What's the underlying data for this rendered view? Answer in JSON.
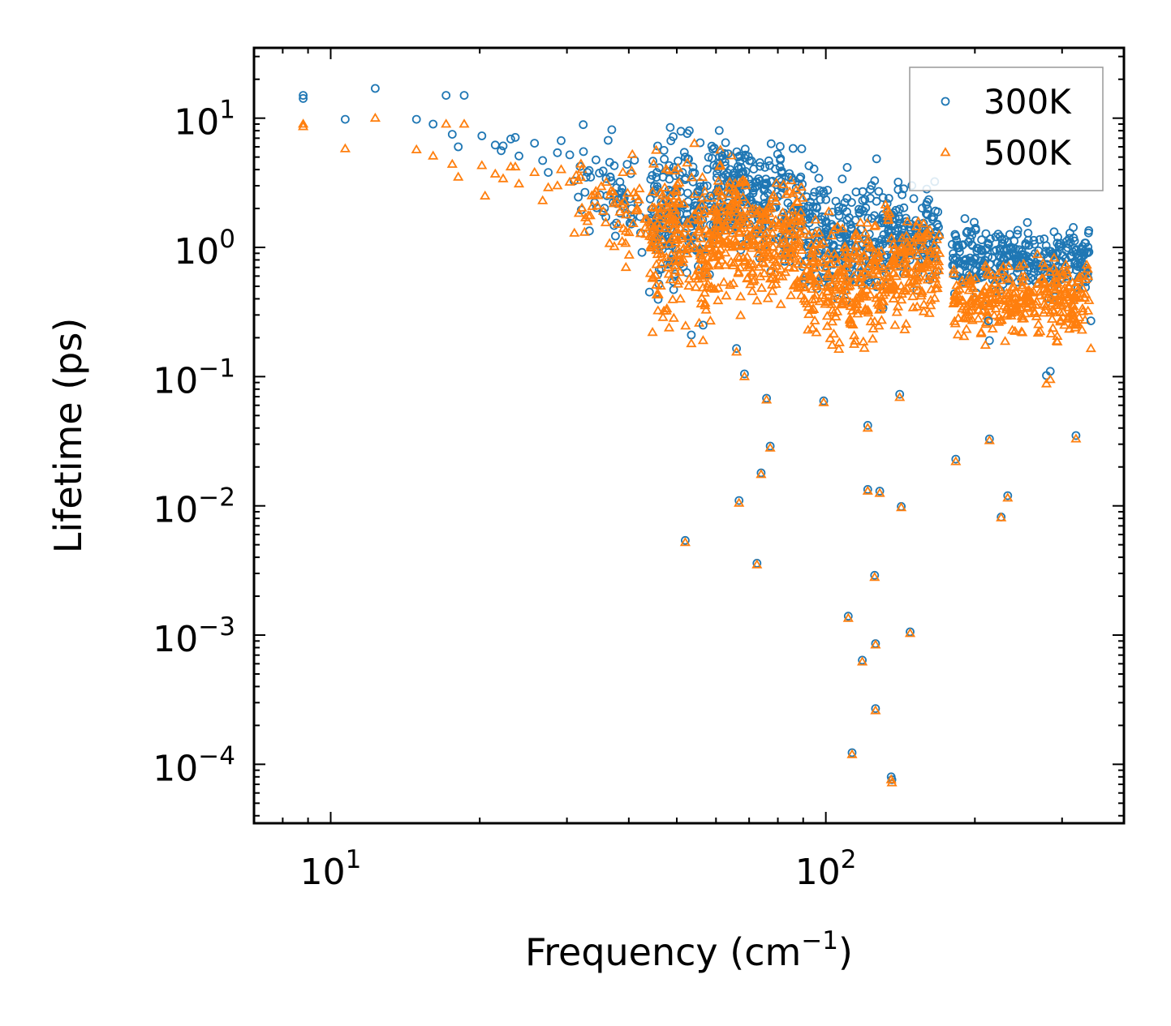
{
  "chart_data": {
    "type": "scatter",
    "title": "",
    "xlabel": "Frequency (cm",
    "xlabel_sup": "−1",
    "xlabel_suffix": ")",
    "ylabel": "Lifetime (ps)",
    "xscale": "log",
    "yscale": "log",
    "xlim": [
      7,
      400
    ],
    "ylim": [
      3.5e-05,
      35
    ],
    "x_ticks": [
      {
        "base": "10",
        "exp": "1",
        "value": 10
      },
      {
        "base": "10",
        "exp": "2",
        "value": 100
      }
    ],
    "y_ticks": [
      {
        "base": "10",
        "exp": "1",
        "value": 10
      },
      {
        "base": "10",
        "exp": "0",
        "value": 1
      },
      {
        "base": "10",
        "exp": "−1",
        "value": 0.1
      },
      {
        "base": "10",
        "exp": "−2",
        "value": 0.01
      },
      {
        "base": "10",
        "exp": "−3",
        "value": 0.001
      },
      {
        "base": "10",
        "exp": "−4",
        "value": 0.0001
      }
    ],
    "legend_position": "top-right",
    "series": [
      {
        "name": "300K",
        "marker": "circle",
        "color": "#1f77b4",
        "points": [
          [
            8.8,
            15.0
          ],
          [
            8.8,
            14.2
          ],
          [
            10.7,
            9.8
          ],
          [
            12.3,
            17.0
          ],
          [
            14.9,
            9.8
          ],
          [
            16.1,
            9.0
          ],
          [
            17.1,
            15.0
          ],
          [
            17.6,
            7.5
          ],
          [
            18.1,
            6.0
          ],
          [
            18.6,
            15.0
          ],
          [
            20.2,
            7.3
          ],
          [
            21.5,
            6.2
          ],
          [
            22.1,
            5.6
          ],
          [
            22.3,
            6.1
          ],
          [
            23.1,
            6.9
          ],
          [
            23.6,
            7.1
          ],
          [
            24.0,
            5.1
          ],
          [
            25.8,
            6.4
          ],
          [
            26.8,
            4.7
          ],
          [
            27.5,
            3.8
          ],
          [
            28.7,
            5.4
          ],
          [
            29.2,
            6.7
          ],
          [
            30.4,
            5.2
          ],
          [
            33.0,
            3.8
          ],
          [
            35.5,
            3.9
          ],
          [
            46.9,
            3.5
          ],
          [
            52.0,
            5.0
          ],
          [
            52.5,
            7.6
          ],
          [
            55.1,
            2.7
          ],
          [
            58.5,
            2.5
          ],
          [
            61.8,
            5.1
          ],
          [
            63.5,
            5.3
          ],
          [
            77.0,
            4.3
          ],
          [
            84.2,
            3.5
          ],
          [
            88.6,
            3.4
          ],
          [
            123.0,
            2.4
          ],
          [
            140.0,
            3.2
          ],
          [
            140.0,
            2.8
          ],
          [
            53.5,
            0.21
          ],
          [
            56.5,
            0.25
          ],
          [
            66.0,
            0.165
          ],
          [
            68.5,
            0.105
          ],
          [
            75.9,
            0.068
          ],
          [
            99.0,
            0.065
          ],
          [
            141.0,
            0.073
          ],
          [
            121.5,
            0.042
          ],
          [
            77.2,
            0.029
          ],
          [
            74.0,
            0.018
          ],
          [
            66.8,
            0.011
          ],
          [
            52.0,
            0.0054
          ],
          [
            72.6,
            0.0036
          ],
          [
            183.0,
            0.023
          ],
          [
            214.0,
            0.033
          ],
          [
            226.0,
            0.0082
          ],
          [
            233.0,
            0.012
          ],
          [
            284.0,
            0.11
          ],
          [
            279.0,
            0.102
          ],
          [
            320.0,
            0.035
          ],
          [
            121.5,
            0.0134
          ],
          [
            128.5,
            0.013
          ],
          [
            142.0,
            0.0099
          ],
          [
            125.5,
            0.0029
          ],
          [
            111.0,
            0.0014
          ],
          [
            126.0,
            0.00086
          ],
          [
            148.0,
            0.00106
          ],
          [
            118.5,
            0.00064
          ],
          [
            126.0,
            0.00027
          ],
          [
            113.0,
            0.000123
          ],
          [
            135.5,
            8e-05
          ],
          [
            136.0,
            7.6e-05
          ],
          [
            214.0,
            0.19
          ],
          [
            213.0,
            0.27
          ],
          [
            343.0,
            0.27
          ]
        ]
      },
      {
        "name": "500K",
        "marker": "triangle",
        "color": "#ff7f0e",
        "points": [
          [
            8.8,
            9.0
          ],
          [
            8.8,
            8.6
          ],
          [
            10.7,
            5.8
          ],
          [
            12.3,
            10.0
          ],
          [
            14.9,
            5.7
          ],
          [
            16.1,
            5.1
          ],
          [
            17.1,
            9.0
          ],
          [
            17.6,
            4.4
          ],
          [
            18.1,
            3.5
          ],
          [
            18.6,
            9.0
          ],
          [
            20.2,
            4.3
          ],
          [
            20.5,
            2.5
          ],
          [
            21.5,
            3.7
          ],
          [
            22.3,
            3.4
          ],
          [
            23.1,
            4.2
          ],
          [
            23.6,
            4.2
          ],
          [
            24.0,
            3.1
          ],
          [
            25.8,
            3.8
          ],
          [
            26.8,
            2.3
          ],
          [
            27.5,
            2.9
          ],
          [
            28.7,
            3.0
          ],
          [
            29.2,
            4.0
          ],
          [
            30.4,
            3.2
          ],
          [
            52.5,
            4.5
          ],
          [
            53.5,
            0.18
          ],
          [
            56.5,
            0.19
          ],
          [
            66.0,
            0.155
          ],
          [
            68.5,
            0.1
          ],
          [
            75.9,
            0.066
          ],
          [
            99.0,
            0.063
          ],
          [
            141.0,
            0.069
          ],
          [
            121.5,
            0.04
          ],
          [
            77.2,
            0.028
          ],
          [
            74.0,
            0.0175
          ],
          [
            66.8,
            0.0105
          ],
          [
            52.0,
            0.0052
          ],
          [
            72.6,
            0.0035
          ],
          [
            183.0,
            0.022
          ],
          [
            214.0,
            0.032
          ],
          [
            226.0,
            0.0081
          ],
          [
            233.0,
            0.0115
          ],
          [
            284.0,
            0.095
          ],
          [
            279.0,
            0.088
          ],
          [
            320.0,
            0.033
          ],
          [
            121.5,
            0.013
          ],
          [
            128.5,
            0.0125
          ],
          [
            142.0,
            0.0097
          ],
          [
            125.5,
            0.0028
          ],
          [
            111.0,
            0.00135
          ],
          [
            126.0,
            0.00084
          ],
          [
            148.0,
            0.00103
          ],
          [
            118.5,
            0.00062
          ],
          [
            126.0,
            0.00026
          ],
          [
            113.0,
            0.000119
          ],
          [
            135.5,
            7.6e-05
          ],
          [
            136.0,
            7.2e-05
          ],
          [
            103.0,
            0.175
          ],
          [
            210.0,
            0.175
          ],
          [
            343.0,
            0.165
          ],
          [
            206.0,
            0.22
          ]
        ]
      }
    ],
    "dense_clusters": [
      {
        "series": "300K",
        "x_range": [
          31,
          44
        ],
        "y_center": 2.6,
        "y_spread": 0.18,
        "count": 60
      },
      {
        "series": "300K",
        "x_range": [
          44,
          60
        ],
        "y_center": 1.7,
        "y_spread": 0.28,
        "count": 200
      },
      {
        "series": "300K",
        "x_range": [
          60,
          70
        ],
        "y_center": 2.7,
        "y_spread": 0.2,
        "count": 120
      },
      {
        "series": "300K",
        "x_range": [
          70,
          90
        ],
        "y_center": 2.1,
        "y_spread": 0.22,
        "count": 150
      },
      {
        "series": "300K",
        "x_range": [
          90,
          130
        ],
        "y_center": 1.2,
        "y_spread": 0.22,
        "count": 220
      },
      {
        "series": "300K",
        "x_range": [
          130,
          170
        ],
        "y_center": 1.2,
        "y_spread": 0.18,
        "count": 160
      },
      {
        "series": "300K",
        "x_range": [
          180,
          340
        ],
        "y_center": 0.8,
        "y_spread": 0.12,
        "count": 320
      },
      {
        "series": "500K",
        "x_range": [
          31,
          44
        ],
        "y_center": 1.9,
        "y_spread": 0.18,
        "count": 60
      },
      {
        "series": "500K",
        "x_range": [
          44,
          60
        ],
        "y_center": 1.0,
        "y_spread": 0.28,
        "count": 220
      },
      {
        "series": "500K",
        "x_range": [
          60,
          70
        ],
        "y_center": 1.3,
        "y_spread": 0.25,
        "count": 130
      },
      {
        "series": "500K",
        "x_range": [
          70,
          90
        ],
        "y_center": 1.1,
        "y_spread": 0.22,
        "count": 170
      },
      {
        "series": "500K",
        "x_range": [
          90,
          130
        ],
        "y_center": 0.55,
        "y_spread": 0.22,
        "count": 240
      },
      {
        "series": "500K",
        "x_range": [
          130,
          170
        ],
        "y_center": 0.7,
        "y_spread": 0.2,
        "count": 170
      },
      {
        "series": "500K",
        "x_range": [
          180,
          340
        ],
        "y_center": 0.4,
        "y_spread": 0.13,
        "count": 330
      }
    ]
  }
}
